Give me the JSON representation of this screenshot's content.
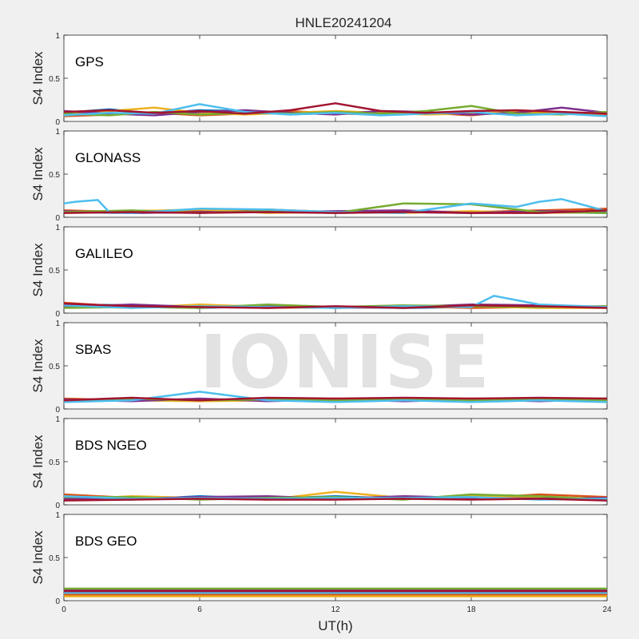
{
  "figure_title": "HNLE20241204",
  "xlabel": "UT(h)",
  "ylabel": "S4 Index",
  "watermark": "IONISE",
  "xticks": [
    "0",
    "6",
    "12",
    "18",
    "24"
  ],
  "yticks": [
    "0",
    "0.5",
    "1"
  ],
  "series_colors": [
    "#0072BD",
    "#D95319",
    "#EDB120",
    "#7E2F8E",
    "#77AC30",
    "#4DBEEE",
    "#A2142F"
  ],
  "chart_data": [
    {
      "type": "line",
      "title": "GPS",
      "x_unit": "UT hours",
      "xlim": [
        0,
        24
      ],
      "ylim": [
        0,
        1
      ],
      "grid": false,
      "series": [
        {
          "x": [
            0,
            2,
            4,
            6,
            8,
            10,
            12,
            14,
            16,
            18,
            20,
            22,
            24
          ],
          "values": [
            0.1,
            0.14,
            0.09,
            0.13,
            0.12,
            0.08,
            0.1,
            0.11,
            0.09,
            0.1,
            0.08,
            0.1,
            0.08
          ]
        },
        {
          "x": [
            0,
            2,
            4,
            6,
            8,
            10,
            12,
            14,
            16,
            18,
            20,
            22,
            24
          ],
          "values": [
            0.06,
            0.08,
            0.1,
            0.07,
            0.09,
            0.12,
            0.09,
            0.08,
            0.1,
            0.07,
            0.12,
            0.09,
            0.07
          ]
        },
        {
          "x": [
            0,
            2,
            4,
            6,
            8,
            10,
            12,
            14,
            16,
            18,
            20,
            22,
            24
          ],
          "values": [
            0.08,
            0.12,
            0.16,
            0.1,
            0.08,
            0.1,
            0.12,
            0.1,
            0.08,
            0.09,
            0.11,
            0.1,
            0.09
          ]
        },
        {
          "x": [
            0,
            2,
            4,
            6,
            8,
            10,
            12,
            14,
            16,
            18,
            20,
            22,
            24
          ],
          "values": [
            0.12,
            0.09,
            0.07,
            0.11,
            0.13,
            0.1,
            0.08,
            0.12,
            0.11,
            0.08,
            0.1,
            0.16,
            0.1
          ]
        },
        {
          "x": [
            0,
            2,
            4,
            6,
            8,
            10,
            12,
            14,
            16,
            18,
            20,
            22,
            24
          ],
          "values": [
            0.09,
            0.07,
            0.11,
            0.08,
            0.1,
            0.09,
            0.11,
            0.09,
            0.12,
            0.18,
            0.09,
            0.08,
            0.11
          ]
        },
        {
          "x": [
            0,
            2,
            4,
            6,
            8,
            10,
            12,
            14,
            16,
            18,
            20,
            22,
            24
          ],
          "values": [
            0.07,
            0.1,
            0.09,
            0.2,
            0.11,
            0.08,
            0.1,
            0.07,
            0.09,
            0.11,
            0.07,
            0.09,
            0.06
          ]
        },
        {
          "x": [
            0,
            2,
            4,
            6,
            8,
            10,
            12,
            14,
            16,
            18,
            20,
            22,
            24
          ],
          "values": [
            0.11,
            0.13,
            0.1,
            0.12,
            0.09,
            0.13,
            0.21,
            0.12,
            0.1,
            0.12,
            0.13,
            0.11,
            0.09
          ]
        }
      ]
    },
    {
      "type": "line",
      "title": "GLONASS",
      "x_unit": "UT hours",
      "xlim": [
        0,
        24
      ],
      "ylim": [
        0,
        1
      ],
      "grid": false,
      "series": [
        {
          "x": [
            0,
            3,
            6,
            9,
            12,
            15,
            18,
            21,
            24
          ],
          "values": [
            0.06,
            0.05,
            0.06,
            0.07,
            0.05,
            0.06,
            0.05,
            0.06,
            0.05
          ]
        },
        {
          "x": [
            0,
            3,
            6,
            9,
            12,
            15,
            18,
            21,
            24
          ],
          "values": [
            0.08,
            0.06,
            0.07,
            0.09,
            0.06,
            0.07,
            0.06,
            0.08,
            0.1
          ]
        },
        {
          "x": [
            0,
            3,
            6,
            9,
            12,
            15,
            18,
            21,
            24
          ],
          "values": [
            0.05,
            0.07,
            0.09,
            0.05,
            0.06,
            0.05,
            0.07,
            0.05,
            0.06
          ]
        },
        {
          "x": [
            0,
            3,
            6,
            9,
            12,
            15,
            18,
            21,
            24
          ],
          "values": [
            0.07,
            0.05,
            0.06,
            0.06,
            0.07,
            0.08,
            0.05,
            0.07,
            0.06
          ]
        },
        {
          "x": [
            0,
            3,
            6,
            9,
            12,
            15,
            18,
            21,
            24
          ],
          "values": [
            0.06,
            0.08,
            0.05,
            0.07,
            0.05,
            0.16,
            0.15,
            0.06,
            0.05
          ]
        },
        {
          "x": [
            0,
            0.5,
            1,
            1.5,
            2,
            3,
            6,
            9,
            12,
            15,
            18,
            20,
            21,
            22,
            24
          ],
          "values": [
            0.16,
            0.18,
            0.19,
            0.2,
            0.06,
            0.05,
            0.1,
            0.09,
            0.06,
            0.05,
            0.16,
            0.12,
            0.18,
            0.21,
            0.07
          ]
        },
        {
          "x": [
            0,
            3,
            6,
            9,
            12,
            15,
            18,
            21,
            24
          ],
          "values": [
            0.05,
            0.06,
            0.05,
            0.06,
            0.05,
            0.06,
            0.05,
            0.05,
            0.08
          ]
        }
      ]
    },
    {
      "type": "line",
      "title": "GALILEO",
      "x_unit": "UT hours",
      "xlim": [
        0,
        24
      ],
      "ylim": [
        0,
        1
      ],
      "grid": false,
      "series": [
        {
          "x": [
            0,
            3,
            6,
            9,
            12,
            15,
            18,
            21,
            24
          ],
          "values": [
            0.1,
            0.09,
            0.06,
            0.08,
            0.07,
            0.06,
            0.07,
            0.08,
            0.07
          ]
        },
        {
          "x": [
            0,
            3,
            6,
            9,
            12,
            15,
            18,
            21,
            24
          ],
          "values": [
            0.12,
            0.07,
            0.08,
            0.06,
            0.07,
            0.08,
            0.06,
            0.07,
            0.08
          ]
        },
        {
          "x": [
            0,
            3,
            6,
            9,
            12,
            15,
            18,
            21,
            24
          ],
          "values": [
            0.08,
            0.06,
            0.1,
            0.07,
            0.06,
            0.07,
            0.08,
            0.06,
            0.06
          ]
        },
        {
          "x": [
            0,
            3,
            6,
            9,
            12,
            15,
            18,
            21,
            24
          ],
          "values": [
            0.07,
            0.1,
            0.07,
            0.08,
            0.06,
            0.07,
            0.1,
            0.09,
            0.07
          ]
        },
        {
          "x": [
            0,
            3,
            6,
            9,
            12,
            15,
            18,
            21,
            24
          ],
          "values": [
            0.06,
            0.07,
            0.06,
            0.1,
            0.07,
            0.09,
            0.08,
            0.07,
            0.08
          ]
        },
        {
          "x": [
            0,
            3,
            6,
            9,
            12,
            15,
            18,
            19,
            21,
            24
          ],
          "values": [
            0.09,
            0.06,
            0.08,
            0.07,
            0.06,
            0.08,
            0.07,
            0.2,
            0.1,
            0.07
          ]
        },
        {
          "x": [
            0,
            3,
            6,
            9,
            12,
            15,
            18,
            21,
            24
          ],
          "values": [
            0.11,
            0.08,
            0.07,
            0.06,
            0.08,
            0.06,
            0.09,
            0.08,
            0.06
          ]
        }
      ]
    },
    {
      "type": "line",
      "title": "SBAS",
      "x_unit": "UT hours",
      "xlim": [
        0,
        24
      ],
      "ylim": [
        0,
        1
      ],
      "grid": false,
      "series": [
        {
          "x": [
            0,
            3,
            6,
            9,
            12,
            15,
            18,
            21,
            24
          ],
          "values": [
            0.1,
            0.11,
            0.1,
            0.12,
            0.1,
            0.11,
            0.1,
            0.11,
            0.1
          ]
        },
        {
          "x": [
            0,
            3,
            6,
            9,
            12,
            15,
            18,
            21,
            24
          ],
          "values": [
            0.12,
            0.1,
            0.11,
            0.1,
            0.12,
            0.1,
            0.12,
            0.11,
            0.12
          ]
        },
        {
          "x": [
            0,
            3,
            6,
            9,
            12,
            15,
            18,
            21,
            24
          ],
          "values": [
            0.09,
            0.1,
            0.09,
            0.1,
            0.09,
            0.11,
            0.09,
            0.1,
            0.09
          ]
        },
        {
          "x": [
            0,
            3,
            6,
            9,
            12,
            15,
            18,
            21,
            24
          ],
          "values": [
            0.11,
            0.09,
            0.12,
            0.09,
            0.11,
            0.09,
            0.11,
            0.09,
            0.11
          ]
        },
        {
          "x": [
            0,
            3,
            6,
            9,
            12,
            15,
            18,
            21,
            24
          ],
          "values": [
            0.1,
            0.12,
            0.1,
            0.11,
            0.1,
            0.12,
            0.1,
            0.12,
            0.1
          ]
        },
        {
          "x": [
            0,
            3,
            6,
            9,
            12,
            15,
            18,
            21,
            24
          ],
          "values": [
            0.08,
            0.1,
            0.2,
            0.1,
            0.08,
            0.1,
            0.08,
            0.1,
            0.08
          ]
        },
        {
          "x": [
            0,
            3,
            6,
            9,
            12,
            15,
            18,
            21,
            24
          ],
          "values": [
            0.1,
            0.13,
            0.1,
            0.13,
            0.12,
            0.13,
            0.12,
            0.13,
            0.12
          ]
        }
      ]
    },
    {
      "type": "line",
      "title": "BDS NGEO",
      "x_unit": "UT hours",
      "xlim": [
        0,
        24
      ],
      "ylim": [
        0,
        1
      ],
      "grid": false,
      "series": [
        {
          "x": [
            0,
            3,
            6,
            9,
            12,
            15,
            18,
            21,
            24
          ],
          "values": [
            0.08,
            0.06,
            0.1,
            0.07,
            0.1,
            0.07,
            0.09,
            0.08,
            0.06
          ]
        },
        {
          "x": [
            0,
            3,
            6,
            9,
            12,
            15,
            18,
            21,
            24
          ],
          "values": [
            0.12,
            0.08,
            0.07,
            0.09,
            0.08,
            0.09,
            0.07,
            0.12,
            0.09
          ]
        },
        {
          "x": [
            0,
            3,
            6,
            9,
            12,
            15,
            18,
            21,
            24
          ],
          "values": [
            0.06,
            0.1,
            0.08,
            0.06,
            0.15,
            0.08,
            0.1,
            0.09,
            0.07
          ]
        },
        {
          "x": [
            0,
            3,
            6,
            9,
            12,
            15,
            18,
            21,
            24
          ],
          "values": [
            0.07,
            0.07,
            0.09,
            0.1,
            0.07,
            0.1,
            0.08,
            0.07,
            0.08
          ]
        },
        {
          "x": [
            0,
            3,
            6,
            9,
            12,
            15,
            18,
            21,
            24
          ],
          "values": [
            0.09,
            0.09,
            0.06,
            0.08,
            0.09,
            0.06,
            0.12,
            0.1,
            0.06
          ]
        },
        {
          "x": [
            0,
            3,
            6,
            9,
            12,
            15,
            18,
            21,
            24
          ],
          "values": [
            0.1,
            0.07,
            0.08,
            0.07,
            0.08,
            0.08,
            0.09,
            0.06,
            0.07
          ]
        },
        {
          "x": [
            0,
            3,
            6,
            9,
            12,
            15,
            18,
            21,
            24
          ],
          "values": [
            0.05,
            0.06,
            0.07,
            0.06,
            0.06,
            0.07,
            0.06,
            0.07,
            0.05
          ]
        }
      ]
    },
    {
      "type": "line",
      "title": "BDS GEO",
      "x_unit": "UT hours",
      "xlim": [
        0,
        24
      ],
      "ylim": [
        0,
        1
      ],
      "grid": false,
      "series": [
        {
          "x": [
            0,
            4,
            8,
            12,
            16,
            20,
            24
          ],
          "values": [
            0.1,
            0.1,
            0.1,
            0.1,
            0.1,
            0.1,
            0.1
          ]
        },
        {
          "x": [
            0,
            4,
            8,
            12,
            16,
            20,
            24
          ],
          "values": [
            0.07,
            0.07,
            0.07,
            0.07,
            0.07,
            0.07,
            0.07
          ]
        },
        {
          "x": [
            0,
            4,
            8,
            12,
            16,
            20,
            24
          ],
          "values": [
            0.05,
            0.05,
            0.05,
            0.05,
            0.05,
            0.05,
            0.05
          ]
        },
        {
          "x": [
            0,
            4,
            8,
            12,
            16,
            20,
            24
          ],
          "values": [
            0.12,
            0.12,
            0.12,
            0.12,
            0.12,
            0.12,
            0.12
          ]
        },
        {
          "x": [
            0,
            4,
            8,
            12,
            16,
            20,
            24
          ],
          "values": [
            0.14,
            0.14,
            0.14,
            0.14,
            0.14,
            0.14,
            0.14
          ]
        },
        {
          "x": [
            0,
            4,
            8,
            12,
            16,
            20,
            24
          ],
          "values": [
            0.09,
            0.09,
            0.09,
            0.09,
            0.09,
            0.09,
            0.09
          ]
        },
        {
          "x": [
            0,
            4,
            8,
            12,
            16,
            20,
            24
          ],
          "values": [
            0.11,
            0.11,
            0.11,
            0.11,
            0.11,
            0.11,
            0.11
          ]
        }
      ]
    }
  ]
}
